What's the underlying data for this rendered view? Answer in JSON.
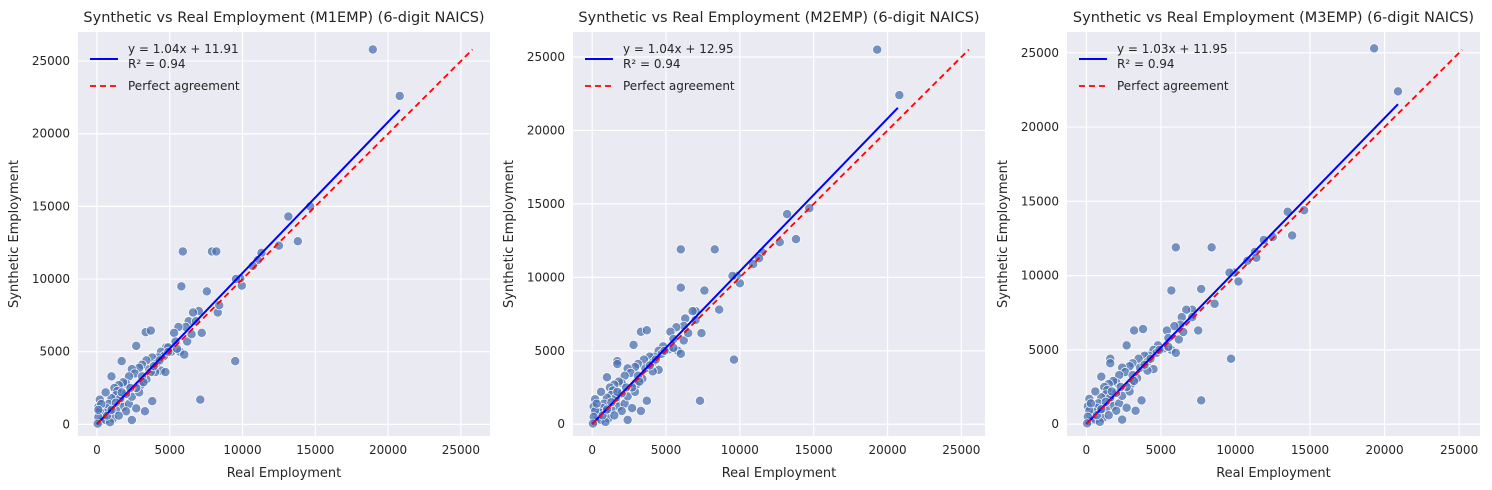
{
  "chart_data": [
    {
      "type": "scatter",
      "title": "Synthetic vs Real Employment (M1EMP) (6-digit NAICS)",
      "xlabel": "Real Employment",
      "ylabel": "Synthetic Employment",
      "xlim": [
        -1300,
        27000
      ],
      "ylim": [
        -800,
        27000
      ],
      "xticks": [
        0,
        5000,
        10000,
        15000,
        20000,
        25000
      ],
      "yticks": [
        0,
        5000,
        10000,
        15000,
        20000,
        25000
      ],
      "grid": true,
      "legend_position": "top-left",
      "fit": {
        "slope": 1.04,
        "intercept": 11.91,
        "x_range": [
          0,
          20800
        ],
        "label_eq": "y = 1.04x + 11.91",
        "label_r2": "R² = 0.94",
        "color": "#0000ff"
      },
      "identity": {
        "range": [
          0,
          25800
        ],
        "label": "Perfect agreement",
        "color": "#ff0000"
      },
      "point_color": "#4c72b0",
      "points": [
        [
          18950,
          25800
        ],
        [
          20800,
          22600
        ],
        [
          14650,
          15000
        ],
        [
          13150,
          14300
        ],
        [
          13800,
          12600
        ],
        [
          12500,
          12300
        ],
        [
          11300,
          11800
        ],
        [
          11050,
          11300
        ],
        [
          10700,
          10900
        ],
        [
          9950,
          9550
        ],
        [
          9850,
          10050
        ],
        [
          9550,
          10000
        ],
        [
          9500,
          4350
        ],
        [
          7900,
          11900
        ],
        [
          8200,
          11900
        ],
        [
          7550,
          9150
        ],
        [
          7000,
          7800
        ],
        [
          7200,
          6300
        ],
        [
          8300,
          7700
        ],
        [
          7100,
          1700
        ],
        [
          6600,
          7700
        ],
        [
          6300,
          7100
        ],
        [
          6800,
          7100
        ],
        [
          6100,
          6700
        ],
        [
          5900,
          11900
        ],
        [
          5800,
          9500
        ],
        [
          5600,
          6700
        ],
        [
          5300,
          6300
        ],
        [
          5400,
          5700
        ],
        [
          5700,
          5000
        ],
        [
          5100,
          5000
        ],
        [
          4750,
          5300
        ],
        [
          4900,
          5300
        ],
        [
          4400,
          5000
        ],
        [
          4600,
          4700
        ],
        [
          4200,
          4600
        ],
        [
          3800,
          4600
        ],
        [
          3350,
          6350
        ],
        [
          3700,
          6450
        ],
        [
          2700,
          5400
        ],
        [
          3400,
          4400
        ],
        [
          3100,
          4100
        ],
        [
          2900,
          3900
        ],
        [
          3600,
          3800
        ],
        [
          4400,
          3700
        ],
        [
          4000,
          3600
        ],
        [
          3700,
          3600
        ],
        [
          4700,
          3600
        ],
        [
          3800,
          1600
        ],
        [
          3300,
          900
        ],
        [
          2400,
          3800
        ],
        [
          2600,
          3500
        ],
        [
          2200,
          3300
        ],
        [
          1700,
          4350
        ],
        [
          2000,
          2800
        ],
        [
          1800,
          2900
        ],
        [
          1500,
          2700
        ],
        [
          1200,
          2500
        ],
        [
          1400,
          2300
        ],
        [
          1000,
          3300
        ],
        [
          1300,
          2000
        ],
        [
          1000,
          1800
        ],
        [
          600,
          2200
        ],
        [
          200,
          1700
        ],
        [
          800,
          1400
        ],
        [
          1600,
          1600
        ],
        [
          1800,
          1200
        ],
        [
          2200,
          1400
        ],
        [
          2400,
          1900
        ],
        [
          2700,
          1100
        ],
        [
          2000,
          900
        ],
        [
          2400,
          300
        ],
        [
          1300,
          1000
        ],
        [
          900,
          900
        ],
        [
          700,
          1100
        ],
        [
          500,
          800
        ],
        [
          300,
          600
        ],
        [
          400,
          400
        ],
        [
          200,
          200
        ],
        [
          600,
          300
        ],
        [
          1100,
          400
        ],
        [
          900,
          150
        ],
        [
          100,
          1200
        ],
        [
          200,
          900
        ],
        [
          100,
          500
        ],
        [
          300,
          1400
        ],
        [
          1500,
          600
        ],
        [
          3000,
          2700
        ],
        [
          2900,
          2200
        ],
        [
          3400,
          3100
        ],
        [
          4100,
          4200
        ],
        [
          4900,
          5000
        ],
        [
          5500,
          5200
        ],
        [
          6200,
          5700
        ],
        [
          6500,
          6200
        ],
        [
          6000,
          4800
        ],
        [
          8400,
          8200
        ],
        [
          3100,
          3300
        ],
        [
          2700,
          2500
        ],
        [
          2000,
          2100
        ],
        [
          1600,
          1800
        ],
        [
          1300,
          1500
        ],
        [
          50,
          50
        ],
        [
          100,
          1000
        ],
        [
          700,
          600
        ],
        [
          1000,
          1000
        ],
        [
          1700,
          2200
        ],
        [
          2300,
          2500
        ],
        [
          3200,
          2900
        ],
        [
          3900,
          4000
        ],
        [
          4300,
          4400
        ]
      ]
    },
    {
      "type": "scatter",
      "title": "Synthetic vs Real Employment (M2EMP) (6-digit NAICS)",
      "xlabel": "Real Employment",
      "ylabel": "Synthetic Employment",
      "xlim": [
        -1300,
        26600
      ],
      "ylim": [
        -800,
        26700
      ],
      "xticks": [
        0,
        5000,
        10000,
        15000,
        20000,
        25000
      ],
      "yticks": [
        0,
        5000,
        10000,
        15000,
        20000,
        25000
      ],
      "grid": true,
      "legend_position": "top-left",
      "fit": {
        "slope": 1.04,
        "intercept": 12.95,
        "x_range": [
          0,
          20700
        ],
        "label_eq": "y = 1.04x + 12.95",
        "label_r2": "R² = 0.94",
        "color": "#0000ff"
      },
      "identity": {
        "range": [
          0,
          25500
        ],
        "label": "Perfect agreement",
        "color": "#ff0000"
      },
      "point_color": "#4c72b0",
      "points": [
        [
          19300,
          25500
        ],
        [
          20800,
          22400
        ],
        [
          14700,
          14700
        ],
        [
          13200,
          14300
        ],
        [
          13800,
          12600
        ],
        [
          12700,
          12400
        ],
        [
          11500,
          11700
        ],
        [
          11300,
          11300
        ],
        [
          10900,
          10900
        ],
        [
          10000,
          9600
        ],
        [
          9800,
          10100
        ],
        [
          9500,
          10100
        ],
        [
          9600,
          4400
        ],
        [
          8300,
          11900
        ],
        [
          6000,
          11900
        ],
        [
          6000,
          9300
        ],
        [
          7600,
          9100
        ],
        [
          7000,
          7700
        ],
        [
          8600,
          7800
        ],
        [
          7300,
          1600
        ],
        [
          6800,
          7700
        ],
        [
          6300,
          7200
        ],
        [
          7000,
          7100
        ],
        [
          6200,
          6700
        ],
        [
          7400,
          6200
        ],
        [
          5700,
          6600
        ],
        [
          5300,
          6300
        ],
        [
          5500,
          5800
        ],
        [
          5800,
          5000
        ],
        [
          5200,
          5100
        ],
        [
          4800,
          5300
        ],
        [
          4500,
          5000
        ],
        [
          4700,
          4800
        ],
        [
          4200,
          4600
        ],
        [
          3900,
          4600
        ],
        [
          3300,
          6300
        ],
        [
          3700,
          6400
        ],
        [
          2800,
          5400
        ],
        [
          3500,
          4400
        ],
        [
          3100,
          4100
        ],
        [
          2900,
          3900
        ],
        [
          3600,
          3800
        ],
        [
          4500,
          3700
        ],
        [
          4100,
          3600
        ],
        [
          3700,
          1600
        ],
        [
          3300,
          900
        ],
        [
          2400,
          3800
        ],
        [
          2600,
          3500
        ],
        [
          2200,
          3300
        ],
        [
          1700,
          4300
        ],
        [
          1700,
          4100
        ],
        [
          2000,
          2800
        ],
        [
          1800,
          2900
        ],
        [
          1500,
          2700
        ],
        [
          1200,
          2500
        ],
        [
          1400,
          2300
        ],
        [
          1000,
          3200
        ],
        [
          1300,
          2000
        ],
        [
          1000,
          1800
        ],
        [
          600,
          2200
        ],
        [
          200,
          1700
        ],
        [
          800,
          1400
        ],
        [
          1600,
          1600
        ],
        [
          1800,
          1200
        ],
        [
          2200,
          1400
        ],
        [
          2400,
          1900
        ],
        [
          2700,
          1100
        ],
        [
          2000,
          900
        ],
        [
          2400,
          300
        ],
        [
          1300,
          1000
        ],
        [
          900,
          900
        ],
        [
          700,
          1100
        ],
        [
          500,
          800
        ],
        [
          300,
          600
        ],
        [
          400,
          400
        ],
        [
          200,
          200
        ],
        [
          600,
          300
        ],
        [
          1100,
          400
        ],
        [
          900,
          150
        ],
        [
          100,
          1200
        ],
        [
          200,
          900
        ],
        [
          100,
          500
        ],
        [
          300,
          1400
        ],
        [
          1500,
          600
        ],
        [
          3000,
          2700
        ],
        [
          2900,
          2200
        ],
        [
          3400,
          3100
        ],
        [
          4100,
          4200
        ],
        [
          4900,
          5000
        ],
        [
          5500,
          5200
        ],
        [
          6200,
          5700
        ],
        [
          6500,
          6200
        ],
        [
          6000,
          4800
        ],
        [
          3100,
          3300
        ],
        [
          2700,
          2500
        ],
        [
          2000,
          2100
        ],
        [
          1600,
          1800
        ],
        [
          1300,
          1500
        ],
        [
          50,
          50
        ],
        [
          700,
          600
        ],
        [
          1000,
          1000
        ],
        [
          1700,
          2200
        ],
        [
          2300,
          2500
        ],
        [
          3200,
          2900
        ],
        [
          3900,
          4000
        ],
        [
          4300,
          4400
        ]
      ]
    },
    {
      "type": "scatter",
      "title": "Synthetic vs Real Employment (M3EMP) (6-digit NAICS)",
      "xlabel": "Real Employment",
      "ylabel": "Synthetic Employment",
      "xlim": [
        -1300,
        26400
      ],
      "ylim": [
        -800,
        26400
      ],
      "xticks": [
        0,
        5000,
        10000,
        15000,
        20000,
        25000
      ],
      "yticks": [
        0,
        5000,
        10000,
        15000,
        20000,
        25000
      ],
      "grid": true,
      "legend_position": "top-left",
      "fit": {
        "slope": 1.03,
        "intercept": 11.95,
        "x_range": [
          0,
          20900
        ],
        "label_eq": "y = 1.03x + 11.95",
        "label_r2": "R² = 0.94",
        "color": "#0000ff"
      },
      "identity": {
        "range": [
          0,
          25200
        ],
        "label": "Perfect agreement",
        "color": "#ff0000"
      },
      "point_color": "#4c72b0",
      "points": [
        [
          19300,
          25300
        ],
        [
          20900,
          22400
        ],
        [
          14600,
          14400
        ],
        [
          13500,
          14300
        ],
        [
          13800,
          12700
        ],
        [
          12500,
          12600
        ],
        [
          11900,
          12400
        ],
        [
          11300,
          11600
        ],
        [
          11400,
          11200
        ],
        [
          10800,
          11000
        ],
        [
          10200,
          9600
        ],
        [
          9900,
          10200
        ],
        [
          9600,
          10200
        ],
        [
          9700,
          4400
        ],
        [
          8400,
          11900
        ],
        [
          6000,
          11900
        ],
        [
          5700,
          9000
        ],
        [
          7700,
          9100
        ],
        [
          7100,
          7700
        ],
        [
          8600,
          8100
        ],
        [
          7700,
          1600
        ],
        [
          6700,
          7700
        ],
        [
          6400,
          7200
        ],
        [
          7100,
          7200
        ],
        [
          6300,
          6700
        ],
        [
          7500,
          6300
        ],
        [
          5900,
          6600
        ],
        [
          5400,
          6300
        ],
        [
          5500,
          5800
        ],
        [
          5700,
          5000
        ],
        [
          5200,
          5100
        ],
        [
          4800,
          5300
        ],
        [
          4500,
          5000
        ],
        [
          4700,
          4800
        ],
        [
          4200,
          4600
        ],
        [
          3900,
          4600
        ],
        [
          3200,
          6300
        ],
        [
          3800,
          6400
        ],
        [
          2700,
          5300
        ],
        [
          3500,
          4400
        ],
        [
          3100,
          4100
        ],
        [
          2900,
          3900
        ],
        [
          3600,
          3800
        ],
        [
          4500,
          3700
        ],
        [
          4100,
          3600
        ],
        [
          3700,
          1600
        ],
        [
          3300,
          900
        ],
        [
          2400,
          3800
        ],
        [
          2600,
          3500
        ],
        [
          2200,
          3300
        ],
        [
          1600,
          4400
        ],
        [
          1600,
          4100
        ],
        [
          2000,
          2800
        ],
        [
          1800,
          2900
        ],
        [
          1500,
          2700
        ],
        [
          1200,
          2500
        ],
        [
          1400,
          2300
        ],
        [
          1000,
          3200
        ],
        [
          1300,
          2000
        ],
        [
          1000,
          1800
        ],
        [
          600,
          2200
        ],
        [
          200,
          1700
        ],
        [
          800,
          1400
        ],
        [
          1600,
          1600
        ],
        [
          1800,
          1200
        ],
        [
          2200,
          1400
        ],
        [
          2400,
          1900
        ],
        [
          2700,
          1100
        ],
        [
          2000,
          900
        ],
        [
          2400,
          300
        ],
        [
          1300,
          1000
        ],
        [
          900,
          900
        ],
        [
          700,
          1100
        ],
        [
          500,
          800
        ],
        [
          300,
          600
        ],
        [
          400,
          400
        ],
        [
          200,
          200
        ],
        [
          600,
          300
        ],
        [
          1100,
          400
        ],
        [
          900,
          150
        ],
        [
          100,
          1200
        ],
        [
          200,
          900
        ],
        [
          100,
          500
        ],
        [
          300,
          1400
        ],
        [
          1500,
          600
        ],
        [
          3000,
          2700
        ],
        [
          2900,
          2200
        ],
        [
          3400,
          3100
        ],
        [
          4100,
          4200
        ],
        [
          4900,
          5000
        ],
        [
          5500,
          5200
        ],
        [
          6200,
          5700
        ],
        [
          6500,
          6200
        ],
        [
          6000,
          4800
        ],
        [
          3100,
          3300
        ],
        [
          2700,
          2500
        ],
        [
          2000,
          2100
        ],
        [
          1600,
          1800
        ],
        [
          1300,
          1500
        ],
        [
          50,
          50
        ],
        [
          700,
          600
        ],
        [
          1000,
          1000
        ],
        [
          1700,
          2200
        ],
        [
          2300,
          2500
        ],
        [
          3200,
          2900
        ],
        [
          3900,
          4000
        ],
        [
          4300,
          4400
        ]
      ]
    }
  ]
}
